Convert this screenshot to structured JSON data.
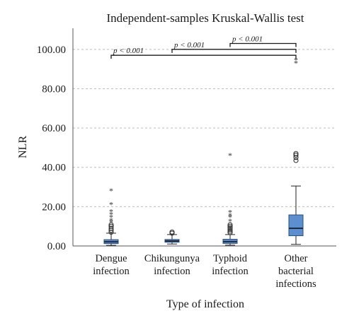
{
  "chart_data": {
    "type": "boxplot",
    "title": "Independent-samples Kruskal-Wallis test",
    "xlabel": "Type of infection",
    "ylabel": "NLR",
    "ylim": [
      0,
      110
    ],
    "yticks": [
      0,
      20,
      40,
      60,
      80,
      100
    ],
    "ytick_labels": [
      "0.00",
      "20.00",
      "40.00",
      "60.00",
      "80.00",
      "100.00"
    ],
    "grid": true,
    "categories": [
      [
        "Dengue",
        "infection"
      ],
      [
        "Chikungunya",
        "infection"
      ],
      [
        "Typhoid",
        "infection"
      ],
      [
        "Other",
        "bacterial",
        "infections"
      ]
    ],
    "boxes": [
      {
        "whisker_low": 0.3,
        "q1": 1.2,
        "median": 2.1,
        "q3": 3.2,
        "whisker_high": 6.5,
        "outliers_circle": [
          7.0,
          8.0,
          9.0,
          10.0,
          10.8
        ],
        "outliers_star": [
          12.0,
          13.0,
          14.5,
          16.0,
          17.5,
          21.0,
          28.0
        ]
      },
      {
        "whisker_low": 1.0,
        "q1": 1.9,
        "median": 2.5,
        "q3": 3.3,
        "whisker_high": 5.8,
        "outliers_circle": [
          6.5,
          7.1
        ],
        "outliers_star": []
      },
      {
        "whisker_low": 0.4,
        "q1": 1.3,
        "median": 2.2,
        "q3": 3.4,
        "whisker_high": 5.8,
        "outliers_circle": [
          6.8,
          7.5,
          8.3,
          9.2,
          10.0,
          10.8
        ],
        "outliers_star": [
          12.5,
          14.5,
          15.5,
          17.0,
          46.0
        ]
      },
      {
        "whisker_low": 0.8,
        "q1": 5.2,
        "median": 9.0,
        "q3": 15.8,
        "whisker_high": 30.5,
        "outliers_circle": [
          43.5,
          45.0,
          46.2,
          47.0
        ],
        "outliers_star": [
          93.0,
          94.5
        ]
      }
    ],
    "comparisons": [
      {
        "from": 0,
        "to": 3,
        "label": "p < 0.001",
        "level": 97
      },
      {
        "from": 1,
        "to": 3,
        "label": "p < 0.001",
        "level": 100
      },
      {
        "from": 2,
        "to": 3,
        "label": "p < 0.001",
        "level": 103
      }
    ]
  }
}
